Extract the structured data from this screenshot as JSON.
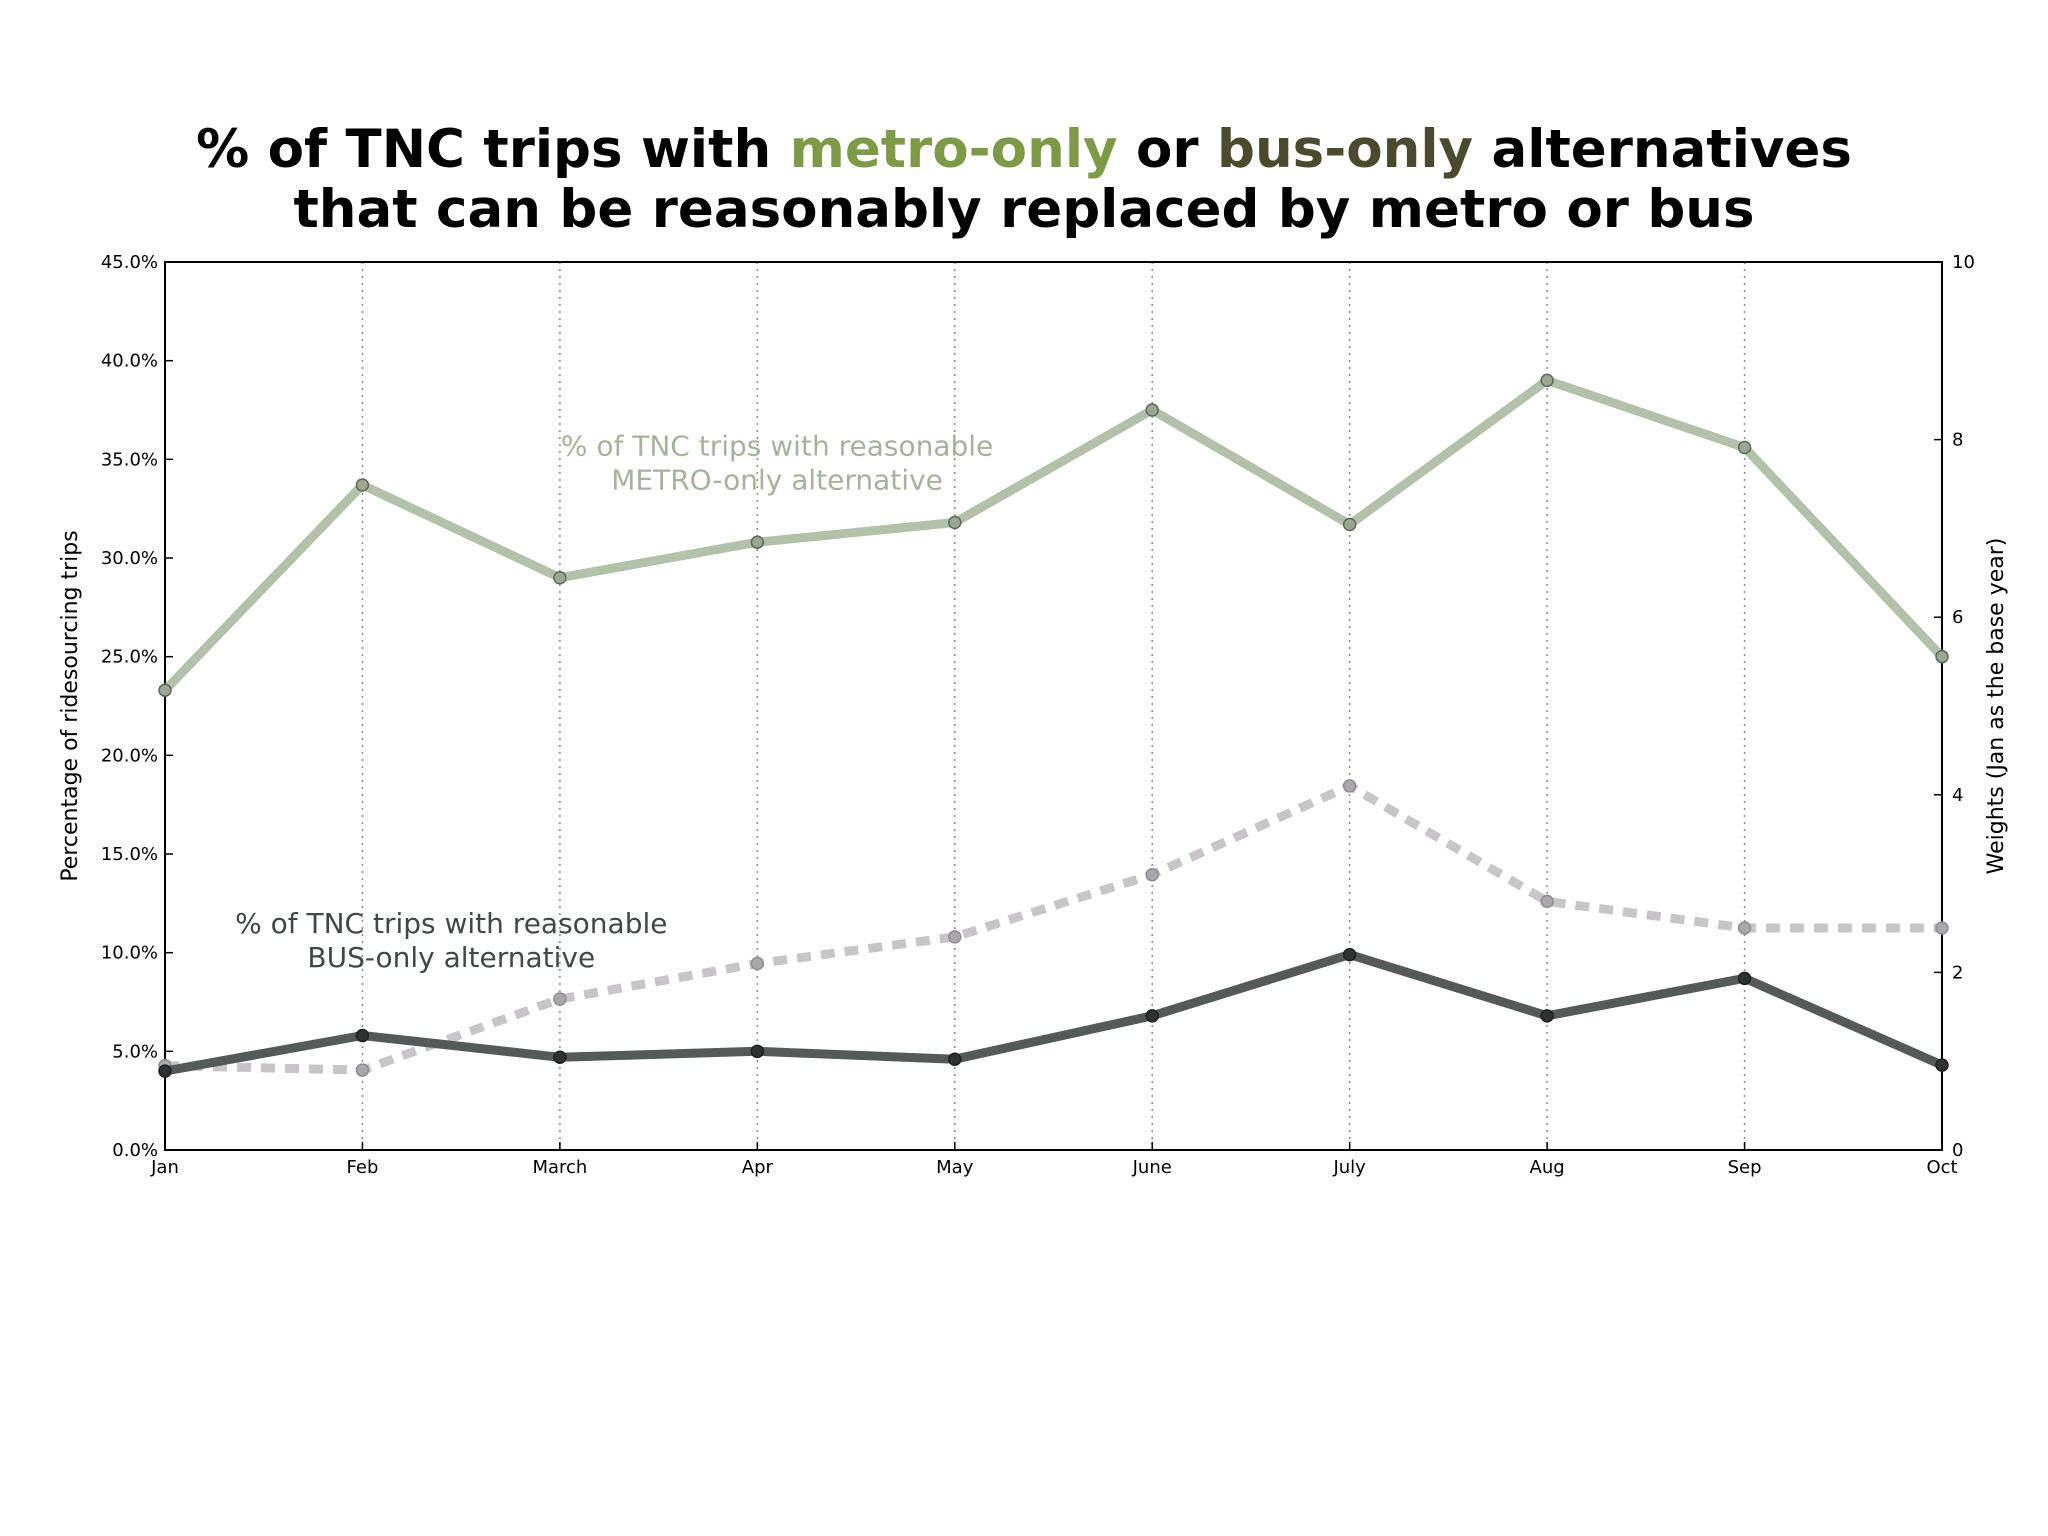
{
  "title": {
    "line1": {
      "p1": "% of TNC trips with ",
      "metro": "metro-only",
      "p2": " or ",
      "bus": "bus-only",
      "p3": " alternatives"
    },
    "line2": "that can be reasonably replaced by metro or bus"
  },
  "colors": {
    "metro_title": "#7d9a44",
    "bus_title": "#4a4a2c",
    "metro_line": "#b1c2a8",
    "bus_line": "#535a58",
    "weights_line": "#c8c5c9",
    "metro_annotation": "#a3b599",
    "bus_annotation": "#414847"
  },
  "chart_data": {
    "type": "line",
    "categories": [
      "Jan",
      "Feb",
      "March",
      "Apr",
      "May",
      "June",
      "July",
      "Aug",
      "Sep",
      "Oct"
    ],
    "ylabel": "Percentage of ridesourcing trips",
    "y2label": "Weights (Jan as the base year)",
    "ylim": [
      0,
      45
    ],
    "y2lim": [
      0,
      10
    ],
    "yticks": [
      0,
      5,
      10,
      15,
      20,
      25,
      30,
      35,
      40,
      45
    ],
    "yticklabels": [
      "0.0%",
      "5.0%",
      "10.0%",
      "15.0%",
      "20.0%",
      "25.0%",
      "30.0%",
      "35.0%",
      "40.0%",
      "45.0%"
    ],
    "y2ticks": [
      0,
      2,
      4,
      6,
      8,
      10
    ],
    "y2ticklabels": [
      "0",
      "2",
      "4",
      "6",
      "8",
      "10"
    ],
    "grid": "vertical dotted",
    "series": [
      {
        "axis": "left",
        "style": "solid",
        "values": [
          23.3,
          33.7,
          29.0,
          30.8,
          31.8,
          37.5,
          31.7,
          39.0,
          35.6,
          25.0
        ]
      },
      {
        "axis": "left",
        "style": "solid",
        "values": [
          4.0,
          5.8,
          4.7,
          5.0,
          4.6,
          6.8,
          9.9,
          6.8,
          8.7,
          4.3
        ]
      },
      {
        "axis": "right",
        "style": "dashed",
        "values": [
          0.95,
          0.9,
          1.7,
          2.1,
          2.4,
          3.1,
          4.1,
          2.8,
          2.5,
          2.5
        ]
      }
    ],
    "annotations": [
      {
        "id": "metro",
        "lines": [
          "% of TNC trips with reasonable",
          "METRO-only alternative"
        ],
        "x": 3.1,
        "y": 35.2
      },
      {
        "id": "bus",
        "lines": [
          "% of TNC trips with reasonable",
          "BUS-only alternative"
        ],
        "x": 1.45,
        "y": 11.0
      }
    ]
  }
}
